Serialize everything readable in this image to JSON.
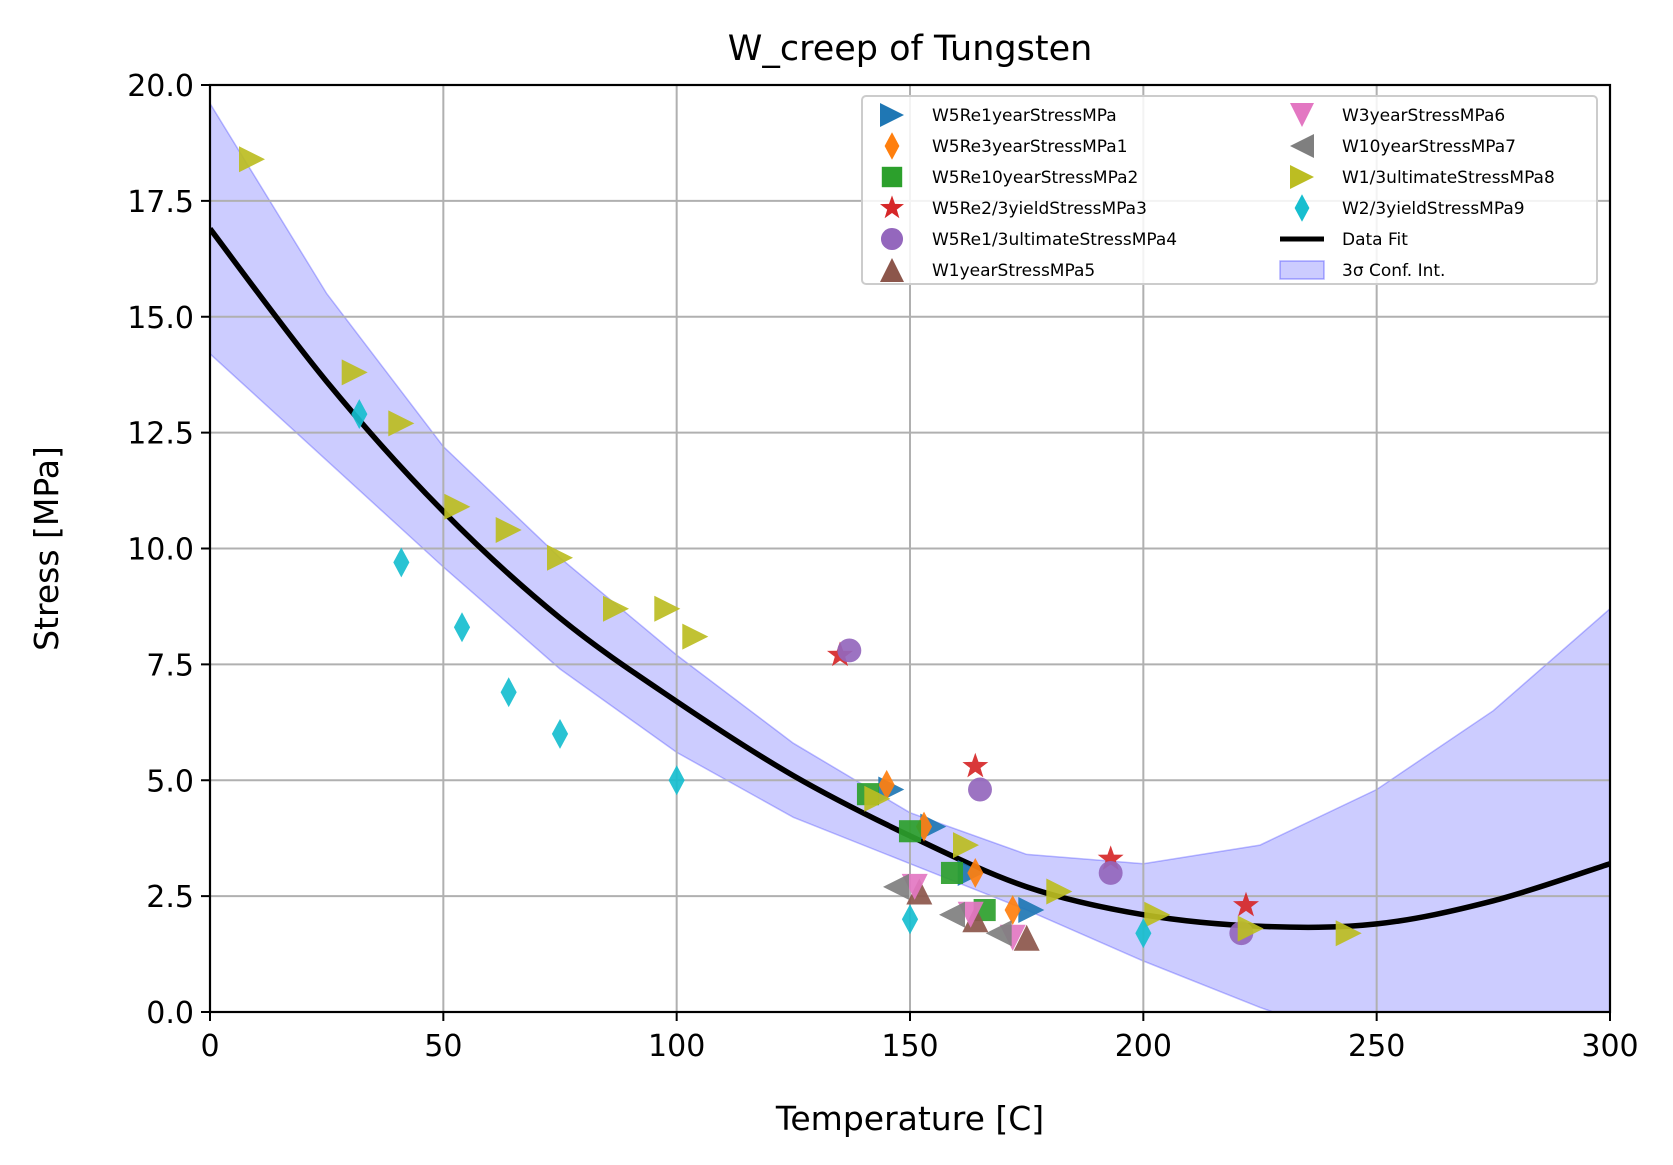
{
  "chart_data": {
    "type": "scatter",
    "title": "W_creep of Tungsten",
    "xlabel": "Temperature [C]",
    "ylabel": "Stress [MPa]",
    "xlim": [
      0,
      300
    ],
    "ylim": [
      0,
      20
    ],
    "xticks": [
      "0",
      "50",
      "100",
      "150",
      "200",
      "250",
      "300"
    ],
    "yticks": [
      "0.0",
      "2.5",
      "5.0",
      "7.5",
      "10.0",
      "12.5",
      "15.0",
      "17.5",
      "20.0"
    ],
    "grid": true,
    "legend_position": "upper-right",
    "series": [
      {
        "name": "W5Re1yearStressMPa",
        "marker": "triangle-right",
        "color": "#1f77b4",
        "points": [
          [
            146,
            4.8
          ],
          [
            155,
            4.0
          ],
          [
            163,
            3.0
          ],
          [
            176,
            2.2
          ]
        ]
      },
      {
        "name": "W5Re3yearStressMPa1",
        "marker": "thin-diamond",
        "color": "#ff7f0e",
        "points": [
          [
            145,
            4.9
          ],
          [
            153,
            4.0
          ],
          [
            164,
            3.0
          ],
          [
            172,
            2.2
          ]
        ]
      },
      {
        "name": "W5Re10yearStressMPa2",
        "marker": "square",
        "color": "#2ca02c",
        "points": [
          [
            141,
            4.7
          ],
          [
            150,
            3.9
          ],
          [
            159,
            3.0
          ],
          [
            166,
            2.2
          ]
        ]
      },
      {
        "name": "W5Re2/3yieldStressMPa3",
        "marker": "star",
        "color": "#d62728",
        "points": [
          [
            135,
            7.7
          ],
          [
            164,
            5.3
          ],
          [
            193,
            3.3
          ],
          [
            222,
            2.3
          ]
        ]
      },
      {
        "name": "W5Re1/3ultimateStressMPa4",
        "marker": "circle",
        "color": "#9467bd",
        "points": [
          [
            137,
            7.8
          ],
          [
            165,
            4.8
          ],
          [
            193,
            3.0
          ],
          [
            221,
            1.7
          ]
        ]
      },
      {
        "name": "W1yearStressMPa5",
        "marker": "triangle-up",
        "color": "#8c564b",
        "points": [
          [
            152,
            2.6
          ],
          [
            164,
            2.0
          ],
          [
            175,
            1.6
          ]
        ]
      },
      {
        "name": "W3yearStressMPa6",
        "marker": "triangle-down",
        "color": "#e377c2",
        "points": [
          [
            151,
            2.7
          ],
          [
            163,
            2.1
          ],
          [
            172,
            1.6
          ]
        ]
      },
      {
        "name": "W10yearStressMPa7",
        "marker": "triangle-left",
        "color": "#7f7f7f",
        "points": [
          [
            147,
            2.7
          ],
          [
            159,
            2.1
          ],
          [
            169,
            1.7
          ]
        ]
      },
      {
        "name": "W1/3ultimateStressMPa8",
        "marker": "triangle-right",
        "color": "#bcbd22",
        "points": [
          [
            9,
            18.4
          ],
          [
            31,
            13.8
          ],
          [
            41,
            12.7
          ],
          [
            53,
            10.9
          ],
          [
            64,
            10.4
          ],
          [
            75,
            9.8
          ],
          [
            87,
            8.7
          ],
          [
            98,
            8.7
          ],
          [
            104,
            8.1
          ],
          [
            143,
            4.6
          ],
          [
            162,
            3.6
          ],
          [
            182,
            2.6
          ],
          [
            203,
            2.1
          ],
          [
            223,
            1.8
          ],
          [
            244,
            1.7
          ]
        ]
      },
      {
        "name": "W2/3yieldStressMPa9",
        "marker": "thin-diamond",
        "color": "#17becf",
        "points": [
          [
            32,
            12.9
          ],
          [
            41,
            9.7
          ],
          [
            54,
            8.3
          ],
          [
            64,
            6.9
          ],
          [
            75,
            6.0
          ],
          [
            100,
            5.0
          ],
          [
            150,
            2.0
          ],
          [
            200,
            1.7
          ]
        ]
      }
    ],
    "fit": {
      "name": "Data Fit",
      "color": "#000000",
      "x": [
        0,
        25,
        50,
        75,
        100,
        125,
        150,
        175,
        200,
        225,
        250,
        275,
        300
      ],
      "y": [
        16.9,
        13.6,
        10.8,
        8.5,
        6.7,
        5.1,
        3.8,
        2.7,
        2.1,
        1.85,
        1.9,
        2.4,
        3.2
      ]
    },
    "confidence_band": {
      "name": "3σ Conf. Int.",
      "color": "#0000ff",
      "x": [
        0,
        25,
        50,
        75,
        100,
        125,
        150,
        175,
        200,
        225,
        250,
        275,
        300
      ],
      "upper": [
        19.6,
        15.5,
        12.2,
        9.8,
        7.7,
        5.8,
        4.3,
        3.4,
        3.2,
        3.6,
        4.8,
        6.5,
        8.7
      ],
      "lower": [
        14.2,
        11.9,
        9.6,
        7.4,
        5.6,
        4.2,
        3.2,
        2.2,
        1.1,
        0.1,
        -0.8,
        -2.0,
        -3.4
      ]
    }
  }
}
